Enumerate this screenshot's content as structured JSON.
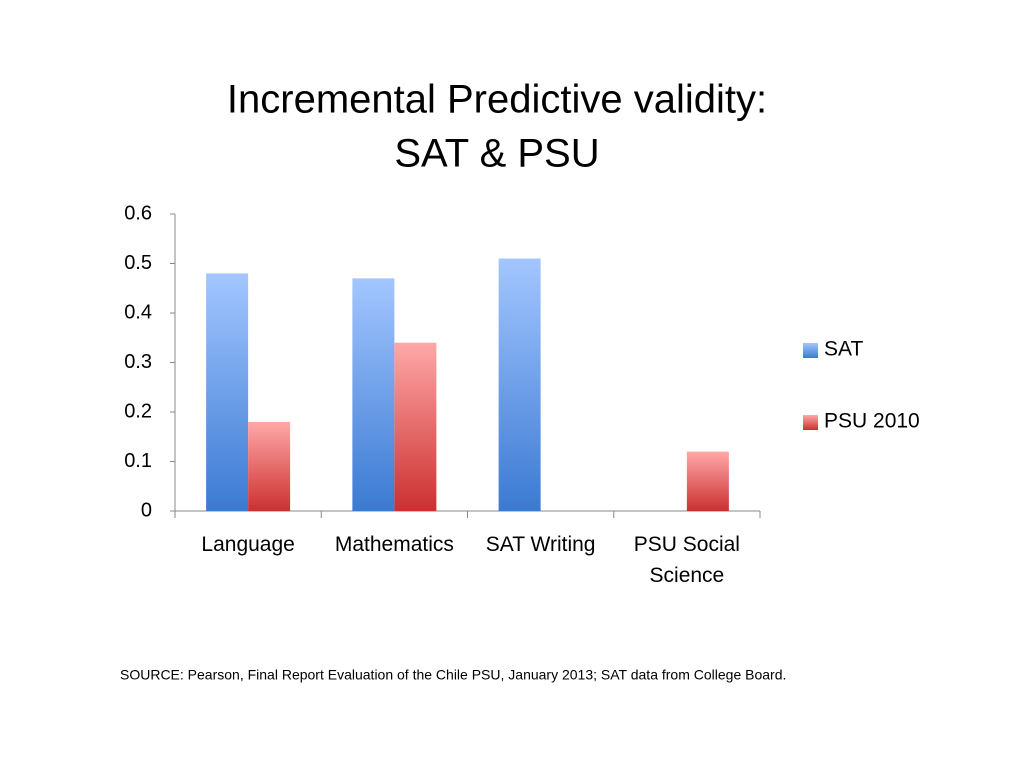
{
  "chart_data": {
    "type": "bar",
    "title": [
      "Incremental Predictive validity:",
      "SAT & PSU"
    ],
    "categories": [
      "Language",
      "Mathematics",
      "SAT Writing",
      "PSU Social Science"
    ],
    "series": [
      {
        "name": "SAT",
        "color": "#4a86d8",
        "values": [
          0.48,
          0.47,
          0.51,
          null
        ]
      },
      {
        "name": "PSU 2010",
        "color": "#d84444",
        "values": [
          0.18,
          0.34,
          null,
          0.12
        ]
      }
    ],
    "ylim": [
      0,
      0.6
    ],
    "yticks": [
      0,
      0.1,
      0.2,
      0.3,
      0.4,
      0.5,
      0.6
    ],
    "legend": "right",
    "source": "SOURCE: Pearson, Final Report Evaluation of the Chile PSU, January 2013; SAT data from College Board."
  }
}
